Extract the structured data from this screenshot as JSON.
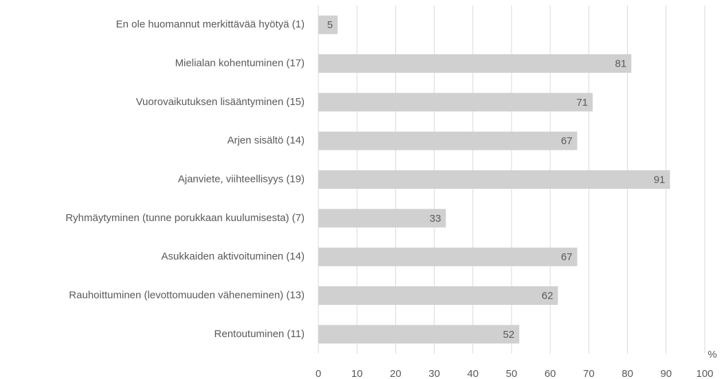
{
  "chart_data": {
    "type": "bar",
    "orientation": "horizontal",
    "categories": [
      "En ole huomannut merkittävää hyötyä (1)",
      "Mielialan kohentuminen (17)",
      "Vuorovaikutuksen lisääntyminen (15)",
      "Arjen sisältö (14)",
      "Ajanviete, viihteellisyys (19)",
      "Ryhmäytyminen (tunne porukkaan kuulumisesta) (7)",
      "Asukkaiden aktivoituminen (14)",
      "Rauhoittuminen (levottomuuden väheneminen) (13)",
      "Rentoutuminen (11)"
    ],
    "values": [
      5,
      81,
      71,
      67,
      91,
      33,
      67,
      62,
      52
    ],
    "color": "#d0d0d0",
    "xlabel": "%",
    "xlim": [
      0,
      100
    ],
    "xticks": [
      0,
      10,
      20,
      30,
      40,
      50,
      60,
      70,
      80,
      90,
      100
    ],
    "grid": true
  }
}
